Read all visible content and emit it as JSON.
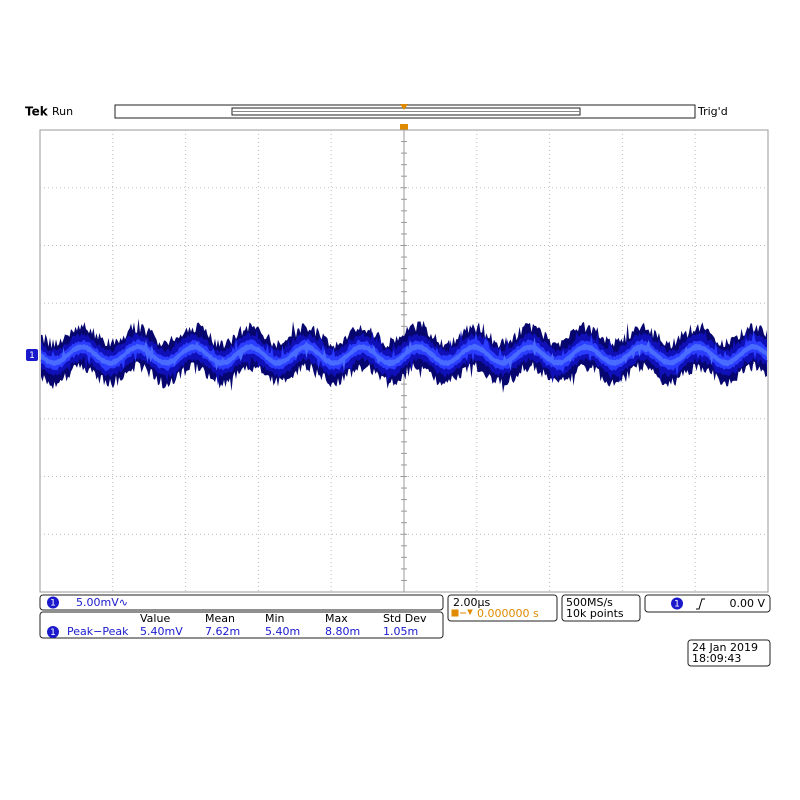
{
  "status": {
    "brand": "Tek",
    "state": "Run",
    "trigger_state": "Trig'd"
  },
  "channel": {
    "number": "1",
    "scale": "5.00mV∿"
  },
  "measurements": {
    "columns": [
      "Value",
      "Mean",
      "Min",
      "Max",
      "Std Dev"
    ],
    "rows": [
      {
        "label": "Peak−Peak",
        "cells": [
          "5.40mV",
          "7.62m",
          "5.40m",
          "8.80m",
          "1.05m"
        ]
      }
    ]
  },
  "timebase": {
    "scale": "2.00µs",
    "position": "0.000000 s"
  },
  "acquisition": {
    "sample_rate": "500MS/s",
    "record_length": "10k points"
  },
  "trigger": {
    "level": "0.00 V"
  },
  "timestamp": {
    "date": "24 Jan 2019",
    "time": "18:09:43"
  }
}
